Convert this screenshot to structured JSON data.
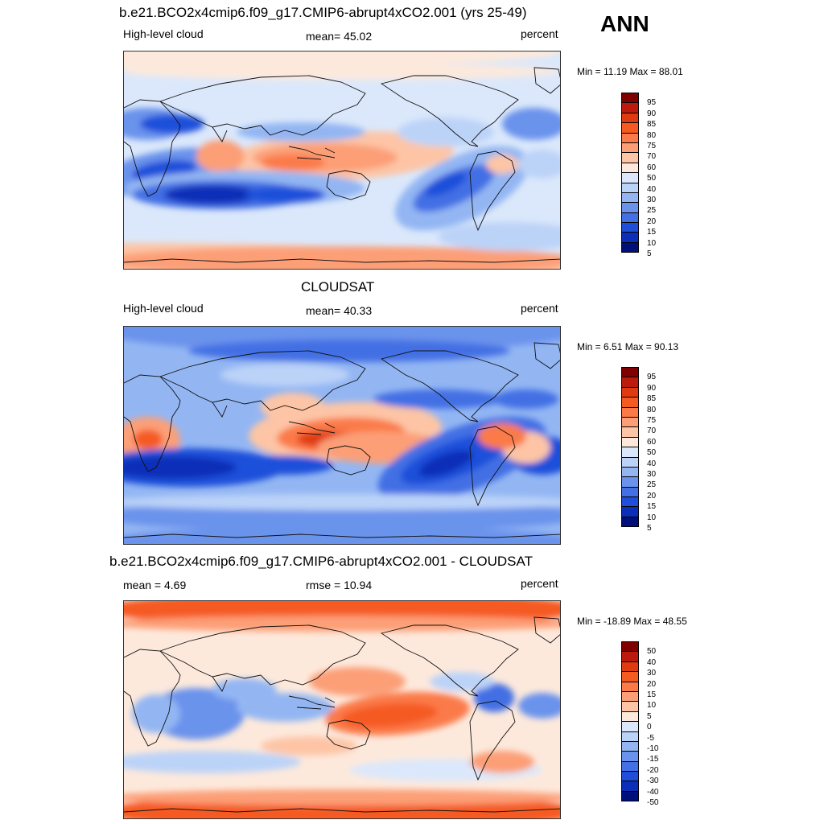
{
  "season": "ANN",
  "chart_data": [
    {
      "type": "heatmap",
      "title": "b.e21.BCO2x4cmip6.f09_g17.CMIP6-abrupt4xCO2.001 (yrs 25-49)",
      "left_label": "High-level cloud",
      "center_label": "mean=  45.02",
      "right_label": "percent",
      "minmax": "Min =  11.19 Max =  88.01",
      "levels": [
        "95",
        "90",
        "85",
        "80",
        "75",
        "70",
        "60",
        "50",
        "40",
        "30",
        "25",
        "20",
        "15",
        "10",
        "5"
      ],
      "colors": [
        "#800000",
        "#bb1a0c",
        "#e03a10",
        "#f55a20",
        "#fb7a48",
        "#fc9f77",
        "#fdc5a6",
        "#fde9dc",
        "#dbe8fb",
        "#bcd3f8",
        "#93b6f3",
        "#6b93ec",
        "#4370e4",
        "#1f4fda",
        "#0b2fb8",
        "#00107a"
      ]
    },
    {
      "type": "heatmap",
      "title": "CLOUDSAT",
      "left_label": "High-level cloud",
      "center_label": "mean=  40.33",
      "right_label": "percent",
      "minmax": "Min =   6.51 Max =  90.13",
      "levels": [
        "95",
        "90",
        "85",
        "80",
        "75",
        "70",
        "60",
        "50",
        "40",
        "30",
        "25",
        "20",
        "15",
        "10",
        "5"
      ],
      "colors": [
        "#800000",
        "#bb1a0c",
        "#e03a10",
        "#f55a20",
        "#fb7a48",
        "#fc9f77",
        "#fdc5a6",
        "#fde9dc",
        "#dbe8fb",
        "#bcd3f8",
        "#93b6f3",
        "#6b93ec",
        "#4370e4",
        "#1f4fda",
        "#0b2fb8",
        "#00107a"
      ]
    },
    {
      "type": "heatmap",
      "title": "b.e21.BCO2x4cmip6.f09_g17.CMIP6-abrupt4xCO2.001 - CLOUDSAT",
      "left_label": "mean =   4.69",
      "center_label": "rmse =  10.94",
      "right_label": "percent",
      "minmax": "Min = -18.89 Max =  48.55",
      "levels": [
        "50",
        "40",
        "30",
        "20",
        "15",
        "10",
        "5",
        "0",
        "-5",
        "-10",
        "-15",
        "-20",
        "-30",
        "-40",
        "-50"
      ],
      "colors": [
        "#800000",
        "#bb1a0c",
        "#e03a10",
        "#f55a20",
        "#fb7a48",
        "#fc9f77",
        "#fdc5a6",
        "#fde9dc",
        "#dbe8fb",
        "#bcd3f8",
        "#93b6f3",
        "#6b93ec",
        "#4370e4",
        "#1f4fda",
        "#0b2fb8",
        "#00107a"
      ]
    }
  ]
}
